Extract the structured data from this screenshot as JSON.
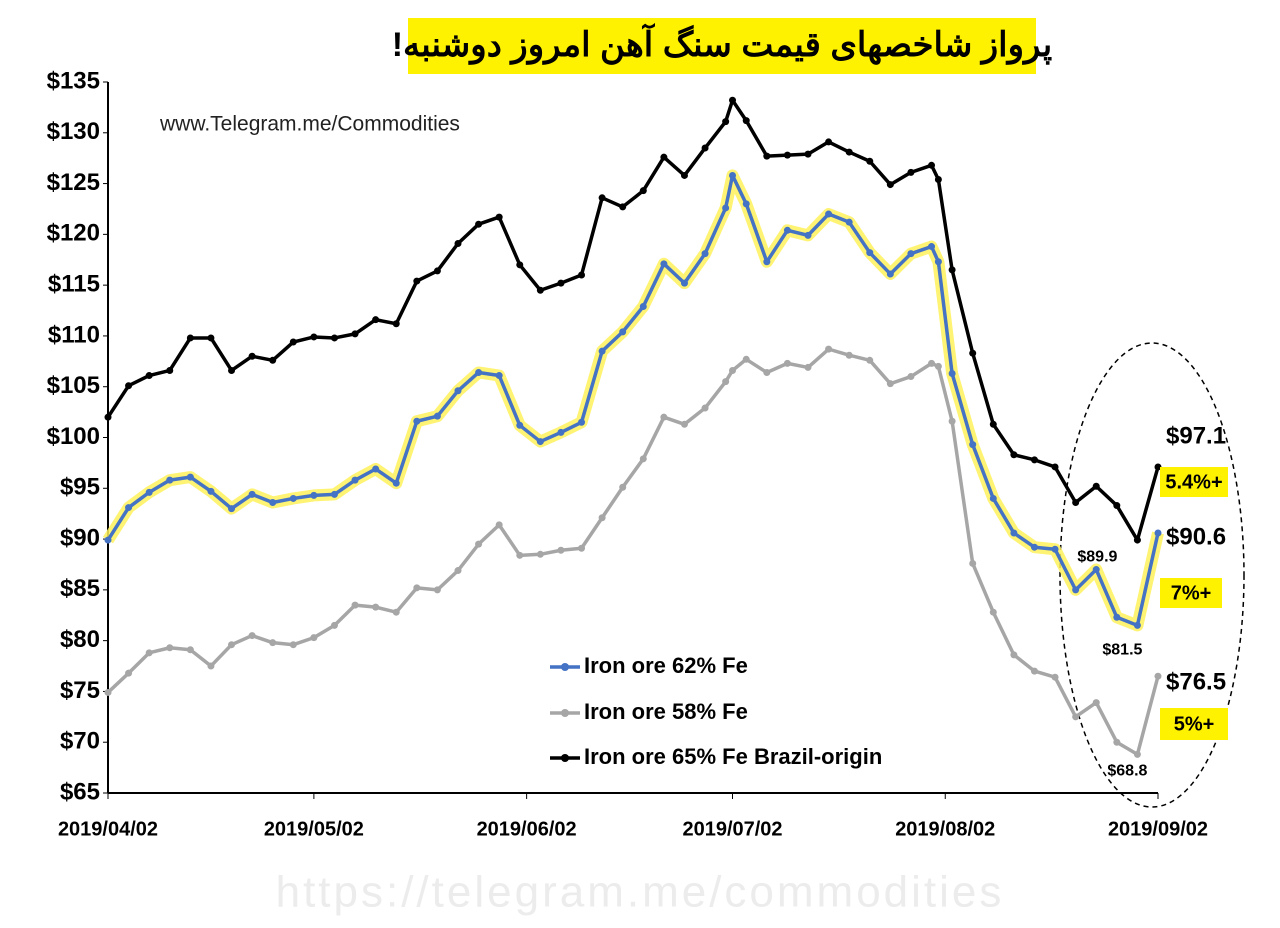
{
  "chart_data": {
    "type": "line",
    "title": "پرواز شاخصهای قیمت سنگ آهن امروز دوشنبه!",
    "source": "www.Telegram.me/Commodities",
    "watermark": "https://telegram.me/commodities",
    "x": [
      "2019/04/02",
      "2019/04/05",
      "2019/04/08",
      "2019/04/11",
      "2019/04/14",
      "2019/04/17",
      "2019/04/20",
      "2019/04/23",
      "2019/04/26",
      "2019/04/29",
      "2019/05/02",
      "2019/05/05",
      "2019/05/08",
      "2019/05/11",
      "2019/05/14",
      "2019/05/17",
      "2019/05/20",
      "2019/05/23",
      "2019/05/26",
      "2019/05/29",
      "2019/06/01",
      "2019/06/04",
      "2019/06/07",
      "2019/06/10",
      "2019/06/13",
      "2019/06/16",
      "2019/06/19",
      "2019/06/22",
      "2019/06/25",
      "2019/06/28",
      "2019/07/01",
      "2019/07/02",
      "2019/07/04",
      "2019/07/07",
      "2019/07/10",
      "2019/07/13",
      "2019/07/16",
      "2019/07/19",
      "2019/07/22",
      "2019/07/25",
      "2019/07/28",
      "2019/07/31",
      "2019/08/01",
      "2019/08/03",
      "2019/08/06",
      "2019/08/09",
      "2019/08/12",
      "2019/08/15",
      "2019/08/18",
      "2019/08/21",
      "2019/08/24",
      "2019/08/27",
      "2019/08/30",
      "2019/09/02"
    ],
    "xlim": [
      "2019/04/02",
      "2019/09/02"
    ],
    "xticks": [
      "2019/04/02",
      "2019/05/02",
      "2019/06/02",
      "2019/07/02",
      "2019/08/02",
      "2019/09/02"
    ],
    "ylim": [
      65,
      135
    ],
    "yticks": [
      {
        "value": 65,
        "label": "$65"
      },
      {
        "value": 70,
        "label": "$70"
      },
      {
        "value": 75,
        "label": "$75"
      },
      {
        "value": 80,
        "label": "$80"
      },
      {
        "value": 85,
        "label": "$85"
      },
      {
        "value": 90,
        "label": "$90"
      },
      {
        "value": 95,
        "label": "$95"
      },
      {
        "value": 100,
        "label": "$100"
      },
      {
        "value": 105,
        "label": "$105"
      },
      {
        "value": 110,
        "label": "$110"
      },
      {
        "value": 115,
        "label": "$115"
      },
      {
        "value": 120,
        "label": "$120"
      },
      {
        "value": 125,
        "label": "$125"
      },
      {
        "value": 130,
        "label": "$130"
      },
      {
        "value": 135,
        "label": "$135"
      }
    ],
    "grid": false,
    "legend": "bottom-center",
    "series": [
      {
        "name": "Iron ore 62% Fe",
        "color": "#4472c4",
        "highlight": "#fff15a",
        "change_label": "7%+",
        "values": [
          89.9,
          93.1,
          94.6,
          95.8,
          96.1,
          94.7,
          93.0,
          94.4,
          93.6,
          94.0,
          94.3,
          94.4,
          95.8,
          96.9,
          95.5,
          101.6,
          102.1,
          104.6,
          106.4,
          106.1,
          101.2,
          99.6,
          100.5,
          101.5,
          108.5,
          110.4,
          112.9,
          117.1,
          115.2,
          118.1,
          122.6,
          125.8,
          123.0,
          117.3,
          120.4,
          119.9,
          122.0,
          121.2,
          118.2,
          116.1,
          118.1,
          118.8,
          117.3,
          106.3,
          99.3,
          94.0,
          90.6,
          89.2,
          89.0,
          85.0,
          87.0,
          82.3,
          81.5,
          90.6
        ],
        "value_labels": [
          null,
          null,
          null,
          null,
          null,
          null,
          null,
          null,
          null,
          null,
          null,
          null,
          null,
          null,
          null,
          null,
          null,
          null,
          null,
          null,
          null,
          null,
          null,
          null,
          null,
          null,
          null,
          null,
          null,
          null,
          null,
          null,
          null,
          null,
          null,
          null,
          null,
          null,
          null,
          null,
          null,
          null,
          null,
          null,
          null,
          null,
          null,
          null,
          null,
          null,
          null,
          null,
          "$81.5",
          "$90.6"
        ]
      },
      {
        "name": "Iron ore 58% Fe",
        "color": "#a6a6a6",
        "change_label": "5%+",
        "values": [
          74.9,
          76.8,
          78.8,
          79.3,
          79.1,
          77.5,
          79.6,
          80.5,
          79.8,
          79.6,
          80.3,
          81.5,
          83.5,
          83.3,
          82.8,
          85.2,
          85.0,
          86.9,
          89.5,
          91.4,
          88.4,
          88.5,
          88.9,
          89.1,
          92.1,
          95.1,
          97.9,
          102.0,
          101.3,
          102.9,
          105.5,
          106.6,
          107.7,
          106.4,
          107.3,
          106.9,
          108.7,
          108.1,
          107.6,
          105.3,
          106.0,
          107.3,
          107.0,
          101.6,
          87.6,
          82.8,
          78.6,
          77.0,
          76.4,
          72.5,
          73.9,
          70.0,
          68.8,
          76.5
        ],
        "value_labels": [
          null,
          null,
          null,
          null,
          null,
          null,
          null,
          null,
          null,
          null,
          null,
          null,
          null,
          null,
          null,
          null,
          null,
          null,
          null,
          null,
          null,
          null,
          null,
          null,
          null,
          null,
          null,
          null,
          null,
          null,
          null,
          null,
          null,
          null,
          null,
          null,
          null,
          null,
          null,
          null,
          null,
          null,
          null,
          null,
          null,
          null,
          null,
          null,
          null,
          null,
          null,
          null,
          "$68.8",
          "$76.5"
        ]
      },
      {
        "name": "Iron ore 65% Fe Brazil-origin",
        "color": "#000000",
        "change_label": "5.4%+",
        "values": [
          102.0,
          105.1,
          106.1,
          106.6,
          109.8,
          109.8,
          106.6,
          108.0,
          107.6,
          109.4,
          109.9,
          109.8,
          110.2,
          111.6,
          111.2,
          115.4,
          116.4,
          119.1,
          121.0,
          121.7,
          117.0,
          114.5,
          115.2,
          116.0,
          123.6,
          122.7,
          124.3,
          127.6,
          125.8,
          128.5,
          131.1,
          133.2,
          131.2,
          127.7,
          127.8,
          127.9,
          129.1,
          128.1,
          127.2,
          124.9,
          126.1,
          126.8,
          125.4,
          116.5,
          108.3,
          101.3,
          98.3,
          97.8,
          97.1,
          93.6,
          95.2,
          93.3,
          89.9,
          97.1
        ],
        "value_labels": [
          null,
          null,
          null,
          null,
          null,
          null,
          null,
          null,
          null,
          null,
          null,
          null,
          null,
          null,
          null,
          null,
          null,
          null,
          null,
          null,
          null,
          null,
          null,
          null,
          null,
          null,
          null,
          null,
          null,
          null,
          null,
          null,
          null,
          null,
          null,
          null,
          null,
          null,
          null,
          null,
          null,
          null,
          null,
          null,
          null,
          null,
          null,
          null,
          null,
          null,
          null,
          null,
          "$89.9",
          "$97.1"
        ]
      }
    ]
  }
}
